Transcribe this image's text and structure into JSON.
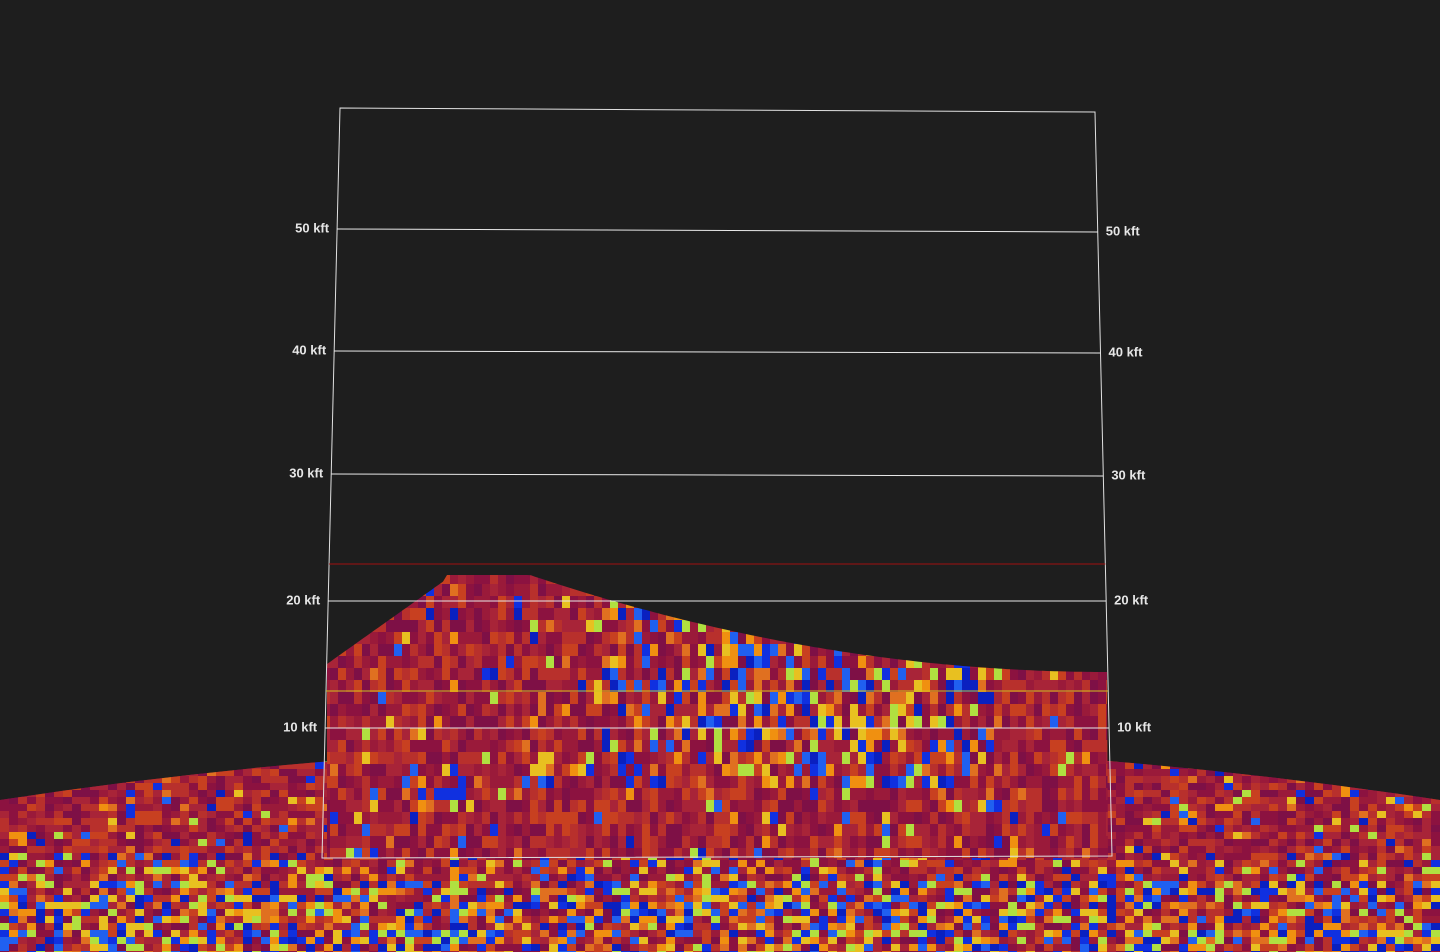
{
  "altitude_labels": [
    "50 kft",
    "40 kft",
    "30 kft",
    "20 kft",
    "10 kft"
  ]
}
